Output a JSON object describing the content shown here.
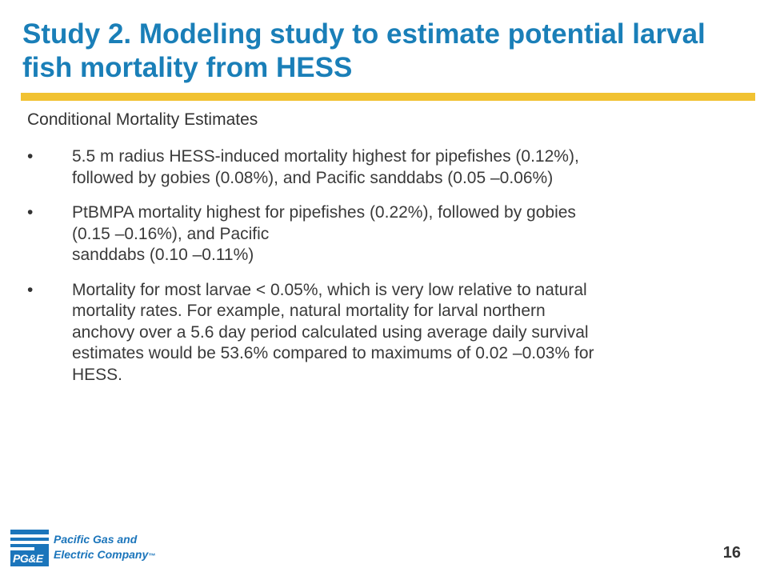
{
  "slide": {
    "title_lines": [
      "Study 2. Modeling study to estimate potential larval",
      "fish mortality from HESS"
    ],
    "subtitle": "Conditional Mortality Estimates",
    "bullet_symbol": "•",
    "bullets": [
      {
        "lines": [
          "5.5 m radius HESS-induced mortality highest for pipefishes (0.12%),",
          "followed by gobies (0.08%), and Pacific sanddabs (0.05 –0.06%)"
        ]
      },
      {
        "lines": [
          "PtBMPA mortality highest for pipefishes (0.22%), followed by gobies",
          "(0.15  –0.16%), and Pacific",
          "sanddabs (0.10  –0.11%)"
        ]
      },
      {
        "lines": [
          "Mortality for most larvae < 0.05%, which is very low relative to natural",
          "mortality rates. For example, natural mortality for larval northern",
          "anchovy over a 5.6 day period calculated using average daily survival",
          "estimates would be 53.6% compared to maximums of 0.02 –0.03% for",
          "HESS."
        ]
      }
    ],
    "page_number": "16"
  },
  "footer": {
    "logo": {
      "mark_text": "PG&E",
      "line1": "Pacific Gas and",
      "line2": "Electric Company",
      "trademark": "™"
    }
  },
  "colors": {
    "title": "#1a7fb8",
    "rule": "#f1c232",
    "logo": "#1b75bb"
  }
}
